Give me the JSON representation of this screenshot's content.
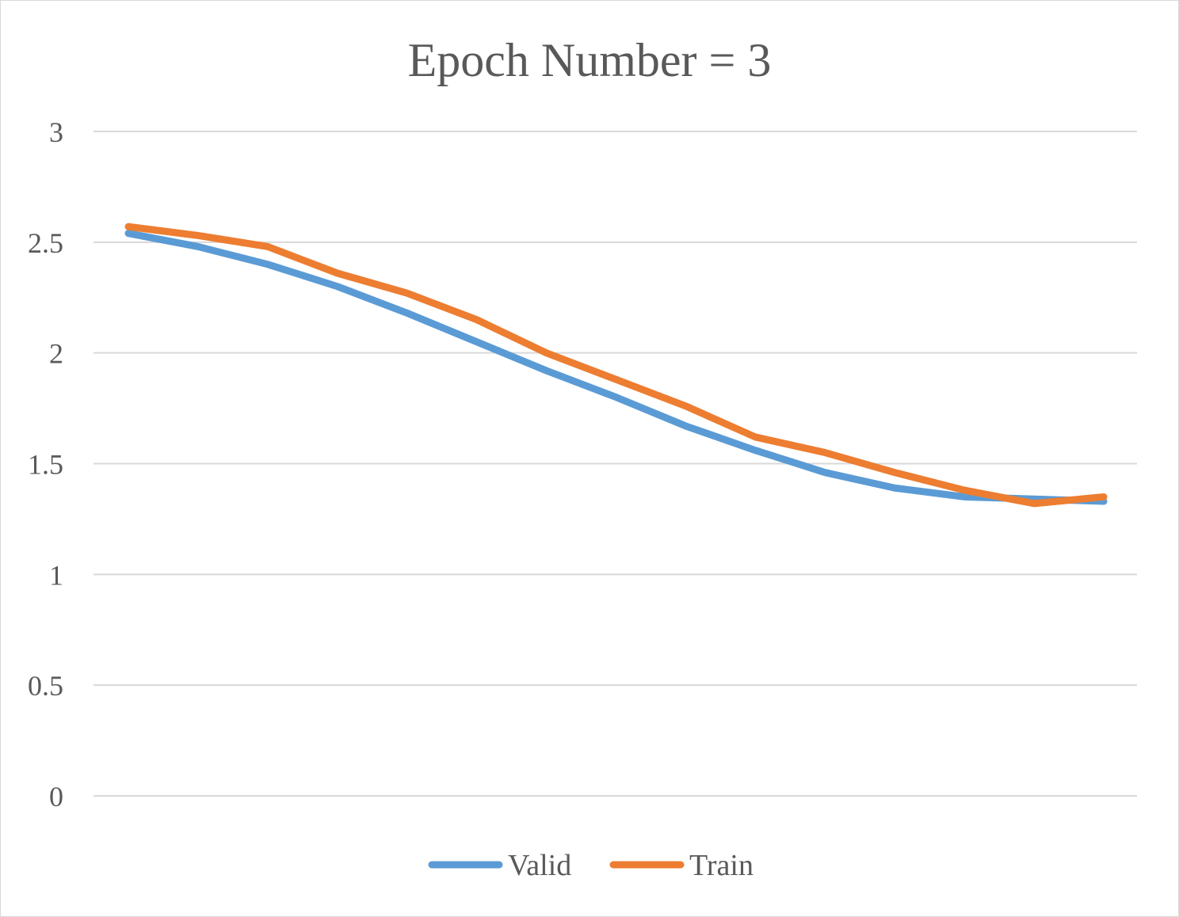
{
  "chart_data": {
    "type": "line",
    "title": "Epoch Number = 3",
    "xlabel": "",
    "ylabel": "",
    "ylim": [
      0,
      3
    ],
    "yticks": [
      0,
      0.5,
      1,
      1.5,
      2,
      2.5,
      3
    ],
    "ytick_labels": [
      "0",
      "0.5",
      "1",
      "1.5",
      "2",
      "2.5",
      "3"
    ],
    "grid": true,
    "legend_position": "bottom",
    "x": [
      1,
      2,
      3,
      4,
      5,
      6,
      7,
      8,
      9,
      10,
      11,
      12,
      13,
      14,
      15
    ],
    "series": [
      {
        "name": "Valid",
        "color": "#5b9bd5",
        "values": [
          2.54,
          2.48,
          2.4,
          2.3,
          2.18,
          2.05,
          1.92,
          1.8,
          1.67,
          1.56,
          1.46,
          1.39,
          1.35,
          1.34,
          1.33
        ]
      },
      {
        "name": "Train",
        "color": "#ed7d31",
        "values": [
          2.57,
          2.53,
          2.48,
          2.36,
          2.27,
          2.15,
          2.0,
          1.88,
          1.76,
          1.62,
          1.55,
          1.46,
          1.38,
          1.32,
          1.35
        ]
      }
    ]
  }
}
